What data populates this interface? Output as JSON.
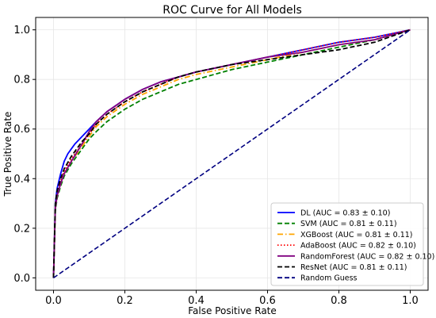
{
  "chart_data": {
    "type": "line",
    "title": "ROC Curve for All Models",
    "xlabel": "False Positive Rate",
    "ylabel": "True Positive Rate",
    "xlim": [
      -0.05,
      1.05
    ],
    "ylim": [
      -0.05,
      1.05
    ],
    "x_ticks": [
      "0.0",
      "0.2",
      "0.4",
      "0.6",
      "0.8",
      "1.0"
    ],
    "y_ticks": [
      "0.0",
      "0.2",
      "0.4",
      "0.6",
      "0.8",
      "1.0"
    ],
    "grid": true,
    "legend_position": "lower-right",
    "series": [
      {
        "name": "DL (AUC = 0.83 ± 0.10)",
        "color": "#0000ff",
        "dash": "solid",
        "x": [
          0,
          0.005,
          0.01,
          0.02,
          0.03,
          0.04,
          0.05,
          0.06,
          0.08,
          0.1,
          0.12,
          0.15,
          0.18,
          0.2,
          0.25,
          0.3,
          0.35,
          0.4,
          0.5,
          0.6,
          0.7,
          0.8,
          0.9,
          1.0
        ],
        "y": [
          0,
          0.3,
          0.36,
          0.42,
          0.47,
          0.5,
          0.52,
          0.54,
          0.57,
          0.6,
          0.63,
          0.67,
          0.7,
          0.72,
          0.76,
          0.79,
          0.81,
          0.83,
          0.86,
          0.89,
          0.92,
          0.95,
          0.97,
          1.0
        ]
      },
      {
        "name": "SVM (AUC = 0.81 ± 0.11)",
        "color": "#008000",
        "dash": "dashed",
        "x": [
          0,
          0.005,
          0.01,
          0.02,
          0.03,
          0.05,
          0.08,
          0.1,
          0.12,
          0.15,
          0.18,
          0.2,
          0.25,
          0.3,
          0.35,
          0.4,
          0.5,
          0.6,
          0.7,
          0.8,
          0.9,
          1.0
        ],
        "y": [
          0,
          0.27,
          0.32,
          0.37,
          0.41,
          0.46,
          0.52,
          0.56,
          0.59,
          0.63,
          0.66,
          0.68,
          0.72,
          0.75,
          0.78,
          0.8,
          0.84,
          0.87,
          0.9,
          0.93,
          0.96,
          1.0
        ]
      },
      {
        "name": "XGBoost (AUC = 0.81 ± 0.11)",
        "color": "#ffa500",
        "dash": "dashdot",
        "x": [
          0,
          0.005,
          0.01,
          0.02,
          0.03,
          0.05,
          0.08,
          0.1,
          0.12,
          0.15,
          0.18,
          0.2,
          0.25,
          0.3,
          0.35,
          0.4,
          0.5,
          0.6,
          0.7,
          0.8,
          0.9,
          1.0
        ],
        "y": [
          0,
          0.28,
          0.33,
          0.38,
          0.42,
          0.47,
          0.53,
          0.57,
          0.61,
          0.65,
          0.68,
          0.7,
          0.74,
          0.77,
          0.8,
          0.82,
          0.85,
          0.88,
          0.91,
          0.94,
          0.96,
          1.0
        ]
      },
      {
        "name": "AdaBoost (AUC = 0.82 ± 0.10)",
        "color": "#ff0000",
        "dash": "dotted",
        "x": [
          0,
          0.005,
          0.01,
          0.02,
          0.03,
          0.05,
          0.08,
          0.1,
          0.12,
          0.15,
          0.18,
          0.2,
          0.25,
          0.3,
          0.35,
          0.4,
          0.5,
          0.6,
          0.7,
          0.8,
          0.9,
          1.0
        ],
        "y": [
          0,
          0.29,
          0.34,
          0.39,
          0.43,
          0.48,
          0.54,
          0.58,
          0.62,
          0.66,
          0.69,
          0.71,
          0.75,
          0.78,
          0.81,
          0.83,
          0.86,
          0.89,
          0.92,
          0.95,
          0.97,
          1.0
        ]
      },
      {
        "name": "RandomForest (AUC = 0.82 ± 0.10)",
        "color": "#800080",
        "dash": "solid",
        "x": [
          0,
          0.005,
          0.01,
          0.02,
          0.03,
          0.05,
          0.08,
          0.1,
          0.12,
          0.15,
          0.18,
          0.2,
          0.25,
          0.3,
          0.35,
          0.4,
          0.5,
          0.6,
          0.7,
          0.8,
          0.9,
          1.0
        ],
        "y": [
          0,
          0.28,
          0.33,
          0.38,
          0.42,
          0.47,
          0.54,
          0.59,
          0.63,
          0.67,
          0.7,
          0.72,
          0.76,
          0.79,
          0.81,
          0.83,
          0.86,
          0.89,
          0.91,
          0.94,
          0.96,
          1.0
        ]
      },
      {
        "name": "ResNet (AUC = 0.81 ± 0.11)",
        "color": "#000000",
        "dash": "dashed",
        "x": [
          0,
          0.005,
          0.01,
          0.02,
          0.03,
          0.05,
          0.08,
          0.1,
          0.12,
          0.15,
          0.18,
          0.2,
          0.25,
          0.3,
          0.35,
          0.4,
          0.5,
          0.6,
          0.7,
          0.8,
          0.9,
          1.0
        ],
        "y": [
          0,
          0.3,
          0.35,
          0.4,
          0.44,
          0.49,
          0.55,
          0.58,
          0.62,
          0.66,
          0.69,
          0.71,
          0.75,
          0.78,
          0.81,
          0.83,
          0.86,
          0.88,
          0.9,
          0.92,
          0.95,
          1.0
        ]
      },
      {
        "name": "Random Guess",
        "color": "#000080",
        "dash": "dashed",
        "x": [
          0,
          1
        ],
        "y": [
          0,
          1
        ]
      }
    ]
  }
}
